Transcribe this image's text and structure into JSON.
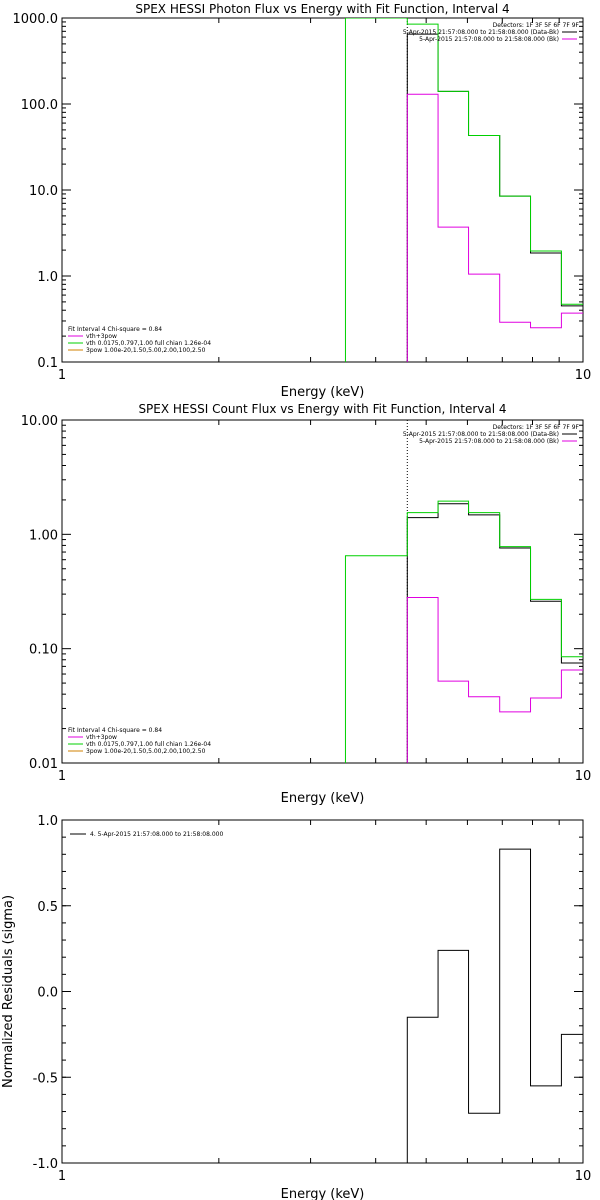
{
  "chart_data": [
    {
      "type": "line",
      "step": true,
      "title": "SPEX HESSI Photon Flux vs Energy with Fit Function, Interval 4",
      "xlabel": "Energy (keV)",
      "ylabel": "",
      "xscale": "log",
      "yscale": "log",
      "xlim": [
        1,
        10
      ],
      "ylim": [
        0.1,
        1000
      ],
      "xticks": [
        {
          "v": 1,
          "label": "1"
        },
        {
          "v": 10,
          "label": "10"
        }
      ],
      "yticks": [
        {
          "v": 0.1,
          "label": "0.1"
        },
        {
          "v": 1,
          "label": "1.0"
        },
        {
          "v": 10,
          "label": "10.0"
        },
        {
          "v": 100,
          "label": "100.0"
        },
        {
          "v": 1000,
          "label": "1000.0"
        }
      ],
      "header_lines": [
        "Detectors: 1F 3F 5F 6F 7F 9F",
        "5-Apr-2015 21:57:08.000 to 21:58:08.000 (Data-Bk)",
        "5-Apr-2015 21:57:08.000 to 21:58:08.000 (Bk)"
      ],
      "fit_info_lines": [
        "Fit Interval 4   Chi-square = 0.84",
        "vth+3pow",
        "vth 0.0175,0.797,1.00   full chian 1.26e-04",
        "3pow 1.00e-20,1.50,5.00,2.00,100,2.50"
      ],
      "vline_x": 4.6,
      "series": [
        {
          "color": "#000000",
          "edges": [
            4.6,
            5.27,
            6.03,
            6.92,
            7.93,
            9.09,
            10.0
          ],
          "values": [
            650,
            140,
            43,
            8.5,
            1.85,
            0.45
          ]
        },
        {
          "color": "#00d000",
          "edges": [
            3.5,
            4.6,
            5.27,
            6.03,
            6.92,
            7.93,
            9.09,
            10.0
          ],
          "values": [
            1000,
            850,
            140,
            43,
            8.5,
            1.95,
            0.47
          ]
        },
        {
          "color": "#e000e0",
          "edges": [
            4.6,
            5.27,
            6.03,
            6.92,
            7.93,
            9.09,
            10.0
          ],
          "values": [
            130,
            3.7,
            1.05,
            0.29,
            0.25,
            0.37
          ]
        }
      ]
    },
    {
      "type": "line",
      "step": true,
      "title": "SPEX HESSI Count Flux vs Energy with Fit Function, Interval 4",
      "xlabel": "Energy (keV)",
      "ylabel": "",
      "xscale": "log",
      "yscale": "log",
      "xlim": [
        1,
        10
      ],
      "ylim": [
        0.01,
        10
      ],
      "xticks": [
        {
          "v": 1,
          "label": "1"
        },
        {
          "v": 10,
          "label": "10"
        }
      ],
      "yticks": [
        {
          "v": 0.01,
          "label": "0.01"
        },
        {
          "v": 0.1,
          "label": "0.10"
        },
        {
          "v": 1,
          "label": "1.00"
        },
        {
          "v": 10,
          "label": "10.00"
        }
      ],
      "header_lines": [
        "Detectors: 1F 3F 5F 6F 7F 9F",
        "5-Apr-2015 21:57:08.000 to 21:58:08.000 (Data-Bk)",
        "5-Apr-2015 21:57:08.000 to 21:58:08.000 (Bk)"
      ],
      "fit_info_lines": [
        "Fit Interval 4   Chi-square = 0.84",
        "vth+3pow",
        "vth 0.0175,0.797,1.00   full chian 1.26e-04",
        "3pow 1.00e-20,1.50,5.00,2.00,100,2.50"
      ],
      "vline_x": 4.6,
      "series": [
        {
          "color": "#000000",
          "edges": [
            4.6,
            5.27,
            6.03,
            6.92,
            7.93,
            9.09,
            10.0
          ],
          "values": [
            1.4,
            1.85,
            1.48,
            0.76,
            0.26,
            0.075
          ]
        },
        {
          "color": "#00d000",
          "edges": [
            3.5,
            4.6,
            5.27,
            6.03,
            6.92,
            7.93,
            9.09,
            10.0
          ],
          "values": [
            0.65,
            1.55,
            1.95,
            1.55,
            0.78,
            0.27,
            0.085
          ]
        },
        {
          "color": "#e000e0",
          "edges": [
            4.6,
            5.27,
            6.03,
            6.92,
            7.93,
            9.09,
            10.0
          ],
          "values": [
            0.28,
            0.052,
            0.038,
            0.028,
            0.037,
            0.065
          ]
        }
      ]
    },
    {
      "type": "line",
      "step": true,
      "title": "",
      "xlabel": "Energy (keV)",
      "ylabel": "Normalized Residuals (sigma)",
      "xscale": "log",
      "yscale": "linear",
      "xlim": [
        1,
        10
      ],
      "ylim": [
        -1,
        1
      ],
      "xticks": [
        {
          "v": 1,
          "label": "1"
        },
        {
          "v": 10,
          "label": "10"
        }
      ],
      "yticks": [
        {
          "v": -1,
          "label": "-1.0"
        },
        {
          "v": -0.5,
          "label": "-0.5"
        },
        {
          "v": 0,
          "label": "0.0"
        },
        {
          "v": 0.5,
          "label": "0.5"
        },
        {
          "v": 1,
          "label": "1.0"
        }
      ],
      "legend_line": "4.  5-Apr-2015 21:57:08.000 to 21:58:08.000",
      "series": [
        {
          "color": "#000000",
          "edges": [
            4.6,
            5.27,
            6.03,
            6.92,
            7.93,
            9.09,
            10.0
          ],
          "values": [
            -0.15,
            0.24,
            -0.71,
            0.83,
            -0.55,
            -0.25
          ]
        }
      ]
    }
  ]
}
